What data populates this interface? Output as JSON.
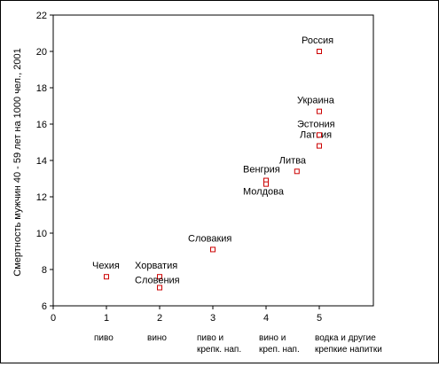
{
  "chart_data": {
    "type": "scatter",
    "title": "",
    "xlabel": "",
    "ylabel": "Смертность мужчин 40 - 59 лет на 1000 чел., 2001",
    "xlim": [
      0,
      5
    ],
    "ylim": [
      6,
      22
    ],
    "x_ticks": [
      0,
      1,
      2,
      3,
      4,
      5
    ],
    "y_ticks": [
      6,
      8,
      10,
      12,
      14,
      16,
      18,
      20,
      22
    ],
    "grid": false,
    "legend": "none",
    "marker_color": "#cc0000",
    "categories": [
      {
        "x": 1,
        "lines": [
          "пиво"
        ]
      },
      {
        "x": 2,
        "lines": [
          "вино"
        ]
      },
      {
        "x": 3,
        "lines": [
          "пиво и",
          "крепк. нап."
        ]
      },
      {
        "x": 4,
        "lines": [
          "вино и",
          "креп. нап."
        ]
      },
      {
        "x": 5,
        "lines": [
          "водка и другие",
          "крепкие напитки"
        ]
      }
    ],
    "points": [
      {
        "label": "Чехия",
        "x": 1.0,
        "y": 7.6,
        "label_pos": "above"
      },
      {
        "label": "Хорватия",
        "x": 2.0,
        "y": 7.6,
        "label_pos": "above"
      },
      {
        "label": "Словения",
        "x": 2.0,
        "y": 7.0,
        "label_pos": "above"
      },
      {
        "label": "Словакия",
        "x": 3.0,
        "y": 9.1,
        "label_pos": "above"
      },
      {
        "label": "Венгрия",
        "x": 4.0,
        "y": 12.9,
        "label_pos": "above-left"
      },
      {
        "label": "Молдова",
        "x": 4.0,
        "y": 12.7,
        "label_pos": "below"
      },
      {
        "label": "Литва",
        "x": 4.58,
        "y": 13.4,
        "label_pos": "above"
      },
      {
        "label": "Латвия",
        "x": 5.0,
        "y": 14.8,
        "label_pos": "above"
      },
      {
        "label": "Эстония",
        "x": 5.0,
        "y": 15.4,
        "label_pos": "above"
      },
      {
        "label": "Украина",
        "x": 5.0,
        "y": 16.7,
        "label_pos": "above"
      },
      {
        "label": "Россия",
        "x": 5.0,
        "y": 20.0,
        "label_pos": "above"
      }
    ]
  }
}
